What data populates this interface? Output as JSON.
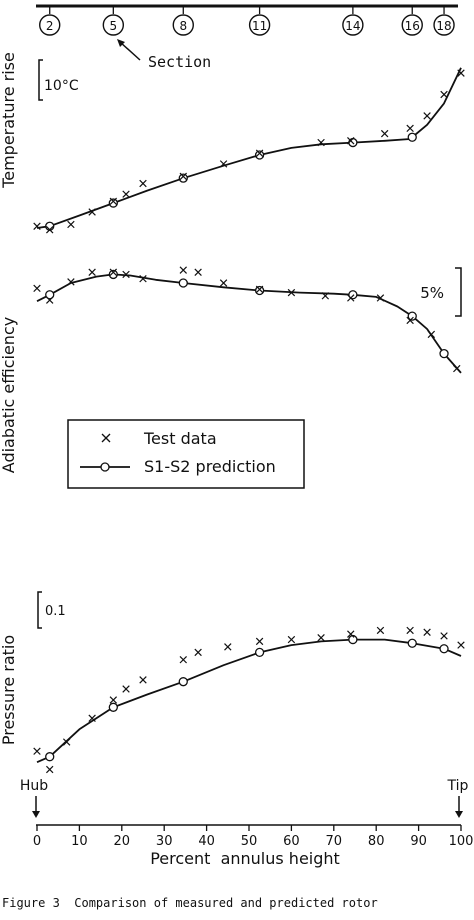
{
  "chart_data": {
    "type": "line",
    "x_label": "Percent  annulus height",
    "x_ticks": [
      0,
      10,
      20,
      30,
      40,
      50,
      60,
      70,
      80,
      90,
      100
    ],
    "x_range": [
      0,
      100
    ],
    "hub_label": "Hub",
    "tip_label": "Tip",
    "section_label": "Section",
    "sections": [
      {
        "label": "2",
        "x": 3
      },
      {
        "label": "5",
        "x": 18
      },
      {
        "label": "8",
        "x": 34.5
      },
      {
        "label": "11",
        "x": 52.5
      },
      {
        "label": "14",
        "x": 74.5
      },
      {
        "label": "16",
        "x": 88.5
      },
      {
        "label": "18",
        "x": 96
      }
    ],
    "legend": {
      "test": "Test data",
      "pred": "S1-S2 prediction"
    },
    "panels": [
      {
        "ylabel": "Temperature rise",
        "scale": "10°C",
        "yrange": [
          0,
          100
        ],
        "prediction": [
          [
            0,
            0
          ],
          [
            3,
            1
          ],
          [
            10,
            7
          ],
          [
            18,
            14
          ],
          [
            26,
            21
          ],
          [
            34.5,
            28
          ],
          [
            44,
            35
          ],
          [
            52.5,
            41
          ],
          [
            60,
            45
          ],
          [
            67,
            47
          ],
          [
            74.5,
            48
          ],
          [
            82,
            49
          ],
          [
            88,
            50
          ],
          [
            92,
            58
          ],
          [
            96,
            70
          ],
          [
            100,
            90
          ]
        ],
        "markers": [
          [
            3,
            1
          ],
          [
            18,
            14
          ],
          [
            34.5,
            28
          ],
          [
            52.5,
            41
          ],
          [
            74.5,
            48
          ],
          [
            88.5,
            51
          ]
        ],
        "test": [
          [
            0,
            1
          ],
          [
            3,
            -1
          ],
          [
            8,
            2
          ],
          [
            13,
            9
          ],
          [
            18,
            15
          ],
          [
            21,
            19
          ],
          [
            25,
            25
          ],
          [
            34.5,
            29
          ],
          [
            44,
            36
          ],
          [
            52.5,
            42
          ],
          [
            67,
            48
          ],
          [
            74,
            49
          ],
          [
            82,
            53
          ],
          [
            88,
            56
          ],
          [
            92,
            63
          ],
          [
            96,
            75
          ],
          [
            100,
            87
          ]
        ]
      },
      {
        "ylabel": "Adiabatic efficiency",
        "scale": "5%",
        "yrange": [
          0,
          100
        ],
        "prediction": [
          [
            0,
            69
          ],
          [
            3,
            75
          ],
          [
            8,
            86
          ],
          [
            14,
            92
          ],
          [
            18,
            94
          ],
          [
            22,
            93
          ],
          [
            28,
            89
          ],
          [
            34.5,
            86
          ],
          [
            44,
            82
          ],
          [
            52.5,
            79
          ],
          [
            62,
            77
          ],
          [
            70,
            76
          ],
          [
            74.5,
            75
          ],
          [
            80,
            73
          ],
          [
            85,
            64
          ],
          [
            88.5,
            55
          ],
          [
            92,
            43
          ],
          [
            96,
            20
          ],
          [
            100,
            2
          ]
        ],
        "markers": [
          [
            3,
            75
          ],
          [
            18,
            94
          ],
          [
            34.5,
            86
          ],
          [
            52.5,
            79
          ],
          [
            74.5,
            75
          ],
          [
            88.5,
            55
          ],
          [
            96,
            20
          ]
        ],
        "test": [
          [
            0,
            81
          ],
          [
            3,
            70
          ],
          [
            8,
            87
          ],
          [
            13,
            96
          ],
          [
            18,
            96
          ],
          [
            21,
            94
          ],
          [
            25,
            90
          ],
          [
            34.5,
            98
          ],
          [
            38,
            96
          ],
          [
            44,
            86
          ],
          [
            52.5,
            80
          ],
          [
            60,
            77
          ],
          [
            68,
            74
          ],
          [
            74,
            72
          ],
          [
            81,
            72
          ],
          [
            88,
            51
          ],
          [
            93,
            38
          ],
          [
            99,
            6
          ]
        ]
      },
      {
        "ylabel": "Pressure ratio",
        "scale": "0.1",
        "yrange": [
          0,
          100
        ],
        "prediction": [
          [
            0,
            7
          ],
          [
            3,
            10
          ],
          [
            10,
            25
          ],
          [
            18,
            37
          ],
          [
            26,
            44
          ],
          [
            34.5,
            51
          ],
          [
            44,
            60
          ],
          [
            52.5,
            67
          ],
          [
            60,
            71
          ],
          [
            67,
            73
          ],
          [
            74.5,
            74
          ],
          [
            82,
            74
          ],
          [
            88.5,
            72
          ],
          [
            96,
            69
          ],
          [
            100,
            65
          ]
        ],
        "markers": [
          [
            3,
            10
          ],
          [
            18,
            37
          ],
          [
            34.5,
            51
          ],
          [
            52.5,
            67
          ],
          [
            74.5,
            74
          ],
          [
            88.5,
            72
          ],
          [
            96,
            69
          ]
        ],
        "test": [
          [
            0,
            13
          ],
          [
            3,
            3
          ],
          [
            7,
            18
          ],
          [
            13,
            31
          ],
          [
            18,
            41
          ],
          [
            21,
            47
          ],
          [
            25,
            52
          ],
          [
            34.5,
            63
          ],
          [
            38,
            67
          ],
          [
            45,
            70
          ],
          [
            52.5,
            73
          ],
          [
            60,
            74
          ],
          [
            67,
            75
          ],
          [
            74,
            77
          ],
          [
            81,
            79
          ],
          [
            88,
            79
          ],
          [
            92,
            78
          ],
          [
            96,
            76
          ],
          [
            100,
            71
          ]
        ]
      }
    ],
    "caption": "Figure 3  Comparison of measured and predicted rotor"
  }
}
